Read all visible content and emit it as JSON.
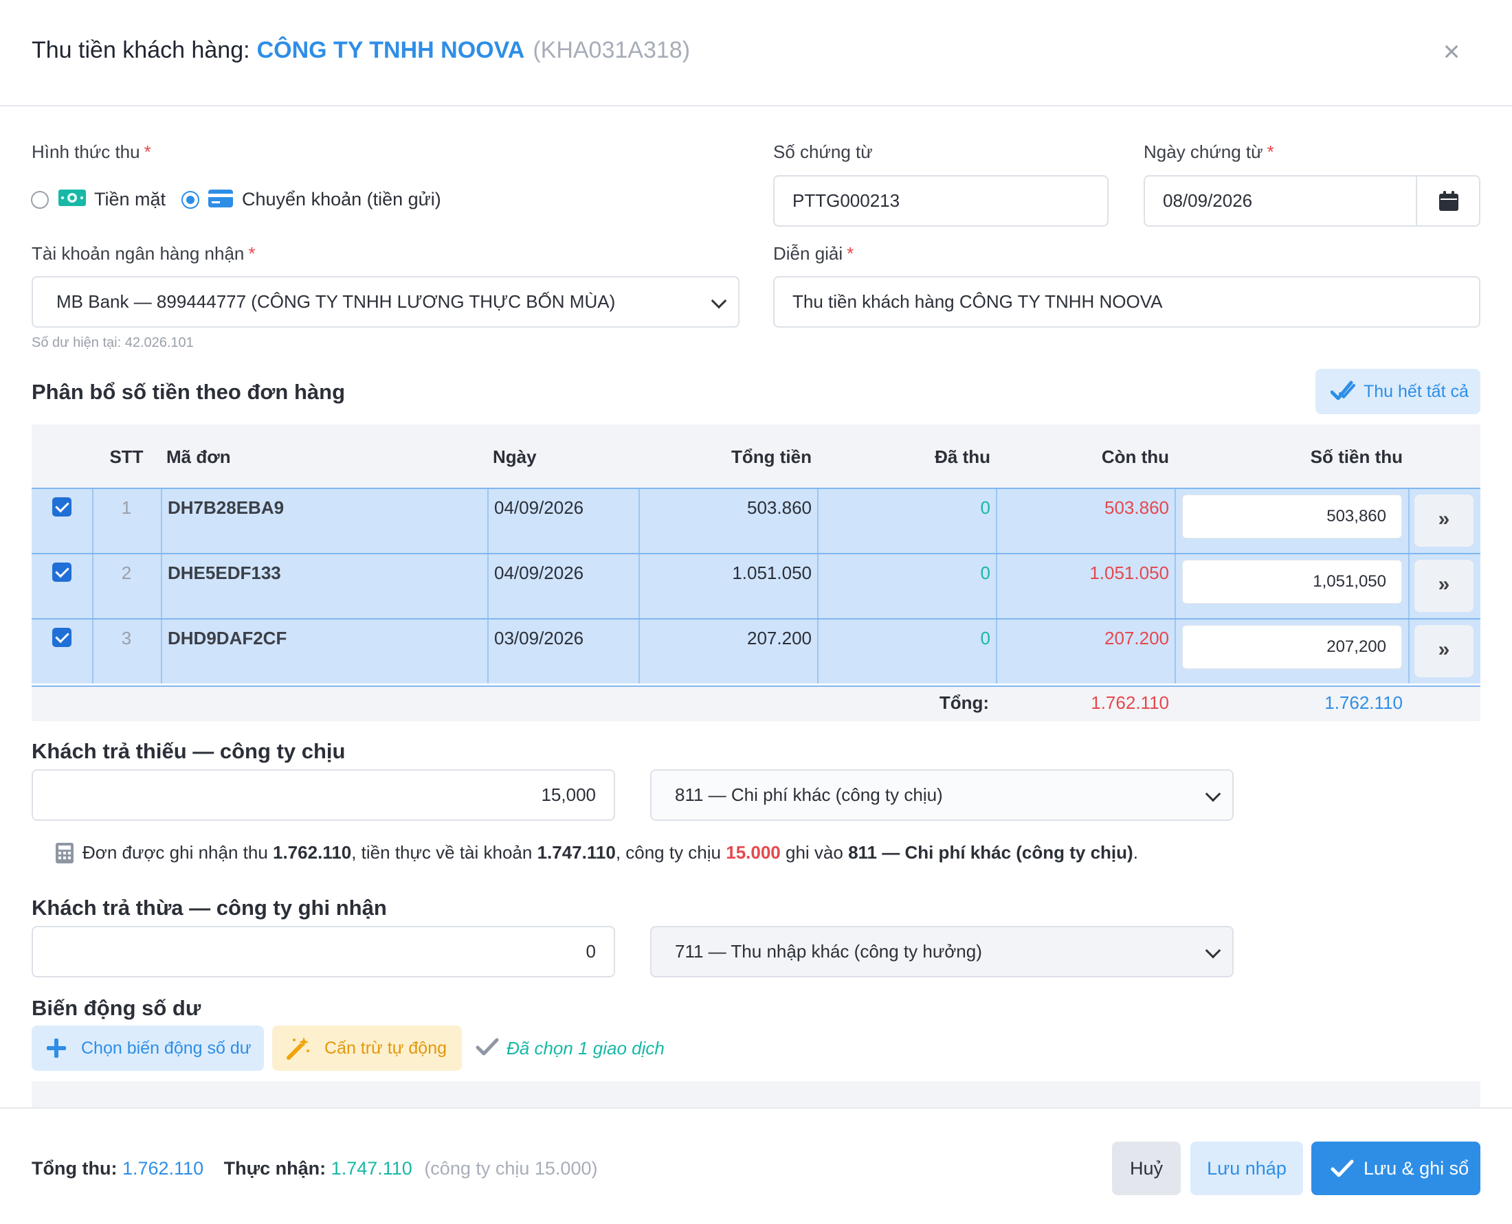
{
  "header": {
    "title_prefix": "Thu tiền khách hàng:",
    "customer_name": "CÔNG TY TNHH NOOVA",
    "customer_code": "(KHA031A318)",
    "close_glyph": "×"
  },
  "form": {
    "method_label": "Hình thức thu",
    "method_cash": "Tiền mặt",
    "method_transfer": "Chuyển khoản (tiền gửi)",
    "method_selected": "transfer",
    "voucher_no_label": "Số chứng từ",
    "voucher_no": "PTTG000213",
    "voucher_date_label": "Ngày chứng từ",
    "voucher_date": "08/09/2026",
    "bank_label": "Tài khoản ngân hàng nhận",
    "bank_value": "MB Bank — 899444777 (CÔNG TY TNHH LƯƠNG THỰC BỐN MÙA)",
    "balance_hint": "Số dư hiện tại: 42.026.101",
    "desc_label": "Diễn giải",
    "desc_value": "Thu tiền khách hàng CÔNG TY TNHH NOOVA",
    "required_mark": "*"
  },
  "allocation": {
    "title": "Phân bổ số tiền theo đơn hàng",
    "collect_all": "Thu hết tất cả",
    "columns": [
      "STT",
      "Mã đơn",
      "Ngày",
      "Tổng tiền",
      "Đã thu",
      "Còn thu",
      "Số tiền thu"
    ],
    "rows": [
      {
        "stt": "1",
        "code": "DH7B28EBA9",
        "date": "04/09/2026",
        "total": "503.860",
        "paid": "0",
        "remain": "503.860",
        "amount": "503,860",
        "checked": true
      },
      {
        "stt": "2",
        "code": "DHE5EDF133",
        "date": "04/09/2026",
        "total": "1.051.050",
        "paid": "0",
        "remain": "1.051.050",
        "amount": "1,051,050",
        "checked": true
      },
      {
        "stt": "3",
        "code": "DHD9DAF2CF",
        "date": "03/09/2026",
        "total": "207.200",
        "paid": "0",
        "remain": "207.200",
        "amount": "207,200",
        "checked": true
      }
    ],
    "row_action": "»",
    "total_label": "Tổng:",
    "total_remain": "1.762.110",
    "total_amount": "1.762.110"
  },
  "underpay": {
    "title": "Khách trả thiếu — công ty chịu",
    "amount": "15,000",
    "account": "811 — Chi phí khác (công ty chịu)",
    "note_a": "Đơn được ghi nhận thu ",
    "note_v1": "1.762.110",
    "note_b": ", tiền thực về tài khoản ",
    "note_v2": "1.747.110",
    "note_c": ", công ty chịu ",
    "note_v3": "15.000",
    "note_d": " ghi vào ",
    "note_v4": "811 — Chi phí khác (công ty chịu)",
    "note_e": "."
  },
  "overpay": {
    "title": "Khách trả thừa — công ty ghi nhận",
    "amount": "0",
    "account": "711 — Thu nhập khác (công ty hưởng)"
  },
  "balance_moves": {
    "title": "Biến động số dư",
    "choose_btn": "Chọn biến động số dư",
    "auto_btn": "Cấn trừ tự động",
    "selected_text": "Đã chọn 1 giao dịch"
  },
  "footer": {
    "total_label": "Tổng thu:",
    "total_value": "1.762.110",
    "received_label": "Thực nhận:",
    "received_value": "1.747.110",
    "company_bears": "(công ty chịu 15.000)",
    "cancel": "Huỷ",
    "draft": "Lưu nháp",
    "save": "Lưu & ghi sổ"
  },
  "colors": {
    "primary": "#2e8ee6",
    "danger": "#e5484d",
    "success": "#17b8a6",
    "row_selected": "#cfe3fb"
  }
}
